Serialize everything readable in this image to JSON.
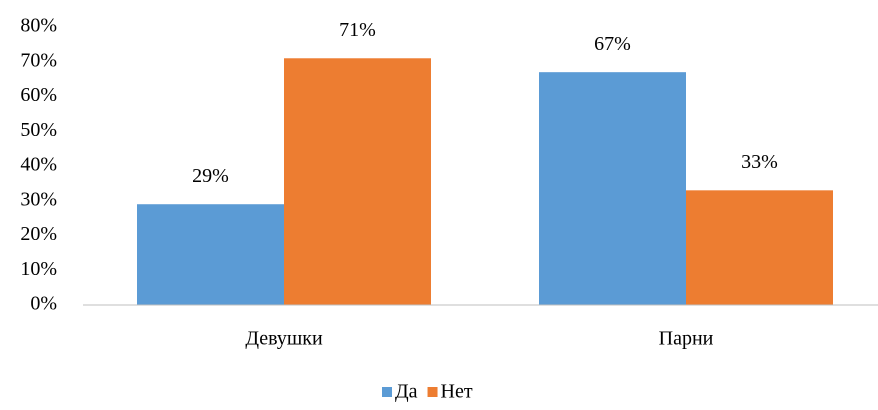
{
  "chart_data": {
    "type": "bar",
    "categories": [
      "Девушки",
      "Парни"
    ],
    "series": [
      {
        "name": "Да",
        "color": "#5b9bd5",
        "values": [
          29,
          67
        ],
        "value_labels": [
          "29%",
          "67%"
        ]
      },
      {
        "name": "Нет",
        "color": "#ed7d31",
        "values": [
          71,
          33
        ],
        "value_labels": [
          "71%",
          "33%"
        ]
      }
    ],
    "ylim": [
      0,
      80
    ],
    "yticks": [
      {
        "value": 0,
        "label": "0%"
      },
      {
        "value": 10,
        "label": "10%"
      },
      {
        "value": 20,
        "label": "20%"
      },
      {
        "value": 30,
        "label": "30%"
      },
      {
        "value": 40,
        "label": "40%"
      },
      {
        "value": 50,
        "label": "50%"
      },
      {
        "value": 60,
        "label": "60%"
      },
      {
        "value": 70,
        "label": "70%"
      },
      {
        "value": 80,
        "label": "80%"
      }
    ],
    "grid": false,
    "legend": "bottom"
  }
}
